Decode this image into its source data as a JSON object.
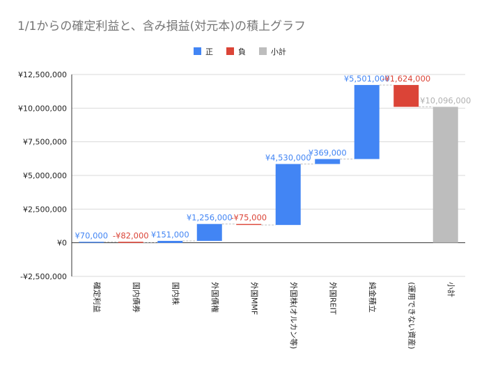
{
  "chart_data": {
    "type": "waterfall",
    "title": "1/1からの確定利益と、含み損益(対元本)の積上グラフ",
    "legend": {
      "position": "top",
      "items": [
        {
          "label": "正",
          "color": "#4285f4"
        },
        {
          "label": "負",
          "color": "#db4437"
        },
        {
          "label": "小計",
          "color": "#bdbdbd"
        }
      ]
    },
    "ylim": [
      -2500000,
      12500000
    ],
    "yticks": [
      {
        "value": 12500000,
        "label": "¥12,500,000"
      },
      {
        "value": 10000000,
        "label": "¥10,000,000"
      },
      {
        "value": 7500000,
        "label": "¥7,500,000"
      },
      {
        "value": 5000000,
        "label": "¥5,000,000"
      },
      {
        "value": 2500000,
        "label": "¥2,500,000"
      },
      {
        "value": 0,
        "label": "¥0"
      },
      {
        "value": -2500000,
        "label": "-¥2,500,000"
      }
    ],
    "categories": [
      "確定利益",
      "国内債券",
      "国内株",
      "外国債権",
      "外国MMF",
      "外国株(オルカン等)",
      "外国REIT",
      "純金積立",
      "(運用できない資産)",
      "小計"
    ],
    "values": [
      70000,
      -82000,
      151000,
      1256000,
      -75000,
      4530000,
      369000,
      5501000,
      -1624000,
      10096000
    ],
    "value_labels": [
      "¥70,000",
      "-¥82,000",
      "¥151,000",
      "¥1,256,000",
      "-¥75,000",
      "¥4,530,000",
      "¥369,000",
      "¥5,501,000",
      "-¥1,624,000",
      "¥10,096,000"
    ],
    "kinds": [
      "pos",
      "neg",
      "pos",
      "pos",
      "neg",
      "pos",
      "pos",
      "pos",
      "neg",
      "subtotal"
    ]
  }
}
